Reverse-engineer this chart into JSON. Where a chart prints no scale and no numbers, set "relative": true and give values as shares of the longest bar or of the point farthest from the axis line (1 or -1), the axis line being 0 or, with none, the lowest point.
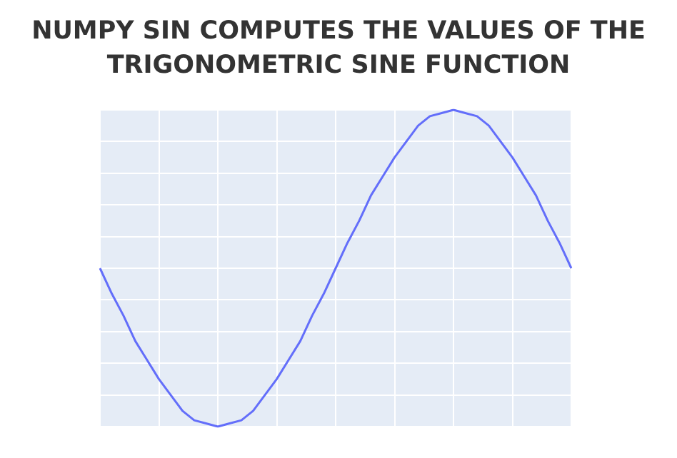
{
  "chart_data": {
    "type": "line",
    "title": "NUMPY SIN COMPUTES THE VALUES OF THE TRIGONOMETRIC SINE FUNCTION",
    "relative": true,
    "grid": true,
    "tick_labels": false,
    "marker": "none",
    "line_style": "solid",
    "categories": [
      null,
      null,
      null,
      null,
      null,
      null,
      null,
      null,
      null,
      null,
      null,
      null,
      null,
      null,
      null,
      null,
      null,
      null,
      null,
      null,
      null,
      null,
      null,
      null,
      null,
      null,
      null,
      null,
      null,
      null,
      null,
      null,
      null,
      null,
      null,
      null,
      null,
      null,
      null,
      null,
      null
    ],
    "series": [
      {
        "color": "#636efa",
        "values": [
          0.5,
          0.42,
          0.35,
          0.27,
          0.21,
          0.15,
          0.1,
          0.05,
          0.02,
          0.01,
          0,
          0.01,
          0.02,
          0.05,
          0.1,
          0.15,
          0.21,
          0.27,
          0.35,
          0.42,
          0.5,
          0.58,
          0.65,
          0.73,
          0.79,
          0.85,
          0.9,
          0.95,
          0.98,
          0.99,
          1,
          0.99,
          0.98,
          0.95,
          0.9,
          0.85,
          0.79,
          0.73,
          0.65,
          0.58,
          0.5
        ]
      }
    ]
  }
}
